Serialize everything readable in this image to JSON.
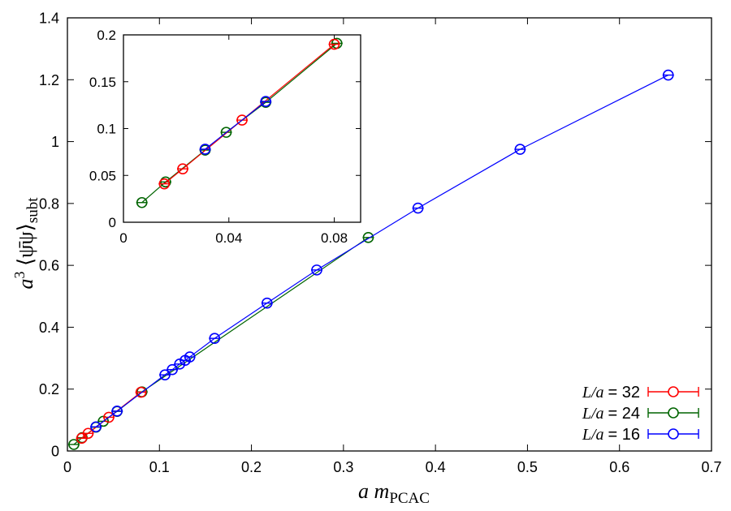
{
  "colors": {
    "l32": "#ff0000",
    "l24": "#006400",
    "l16": "#0000ff",
    "axis": "#000000"
  },
  "chart_data": [
    {
      "type": "scatter",
      "title": "",
      "xlabel": "a m_PCAC",
      "ylabel": "a^3 ⟨ψ̄ψ⟩_subt",
      "xlim": [
        0,
        0.7
      ],
      "ylim": [
        0,
        1.4
      ],
      "xticks": [
        "0",
        "0.1",
        "0.2",
        "0.3",
        "0.4",
        "0.5",
        "0.6",
        "0.7"
      ],
      "yticks": [
        "0",
        "0.2",
        "0.4",
        "0.6",
        "0.8",
        "1",
        "1.2",
        "1.4"
      ],
      "grid": false,
      "legend_position": "bottom-right",
      "series": [
        {
          "name": "L/a = 32",
          "color": "#ff0000",
          "x": [
            0.0155,
            0.0225,
            0.045,
            0.08
          ],
          "y": [
            0.041,
            0.057,
            0.109,
            0.19
          ]
        },
        {
          "name": "L/a = 24",
          "color": "#006400",
          "x": [
            0.007,
            0.016,
            0.031,
            0.039,
            0.054,
            0.081,
            0.327
          ],
          "y": [
            0.021,
            0.043,
            0.077,
            0.096,
            0.128,
            0.191,
            0.69
          ]
        },
        {
          "name": "L/a = 16",
          "color": "#0000ff",
          "x": [
            0.031,
            0.054,
            0.106,
            0.114,
            0.122,
            0.128,
            0.133,
            0.16,
            0.217,
            0.271,
            0.381,
            0.492,
            0.653
          ],
          "y": [
            0.078,
            0.129,
            0.246,
            0.263,
            0.281,
            0.293,
            0.304,
            0.364,
            0.478,
            0.585,
            0.785,
            0.975,
            1.215
          ]
        }
      ]
    },
    {
      "type": "scatter",
      "title": "",
      "xlim": [
        0,
        0.09
      ],
      "ylim": [
        0,
        0.2
      ],
      "xticks": [
        "0",
        "0.04",
        "0.08"
      ],
      "yticks": [
        "0",
        "0.05",
        "0.1",
        "0.15",
        "0.2"
      ],
      "grid": false,
      "legend_position": "none",
      "series": [
        {
          "name": "L/a = 32",
          "color": "#ff0000",
          "x": [
            0.0155,
            0.0225,
            0.045,
            0.08
          ],
          "y": [
            0.041,
            0.057,
            0.109,
            0.19
          ]
        },
        {
          "name": "L/a = 24",
          "color": "#006400",
          "x": [
            0.007,
            0.016,
            0.031,
            0.039,
            0.054,
            0.081
          ],
          "y": [
            0.021,
            0.043,
            0.077,
            0.096,
            0.128,
            0.191
          ]
        },
        {
          "name": "L/a = 16",
          "color": "#0000ff",
          "x": [
            0.031,
            0.054
          ],
          "y": [
            0.078,
            0.129
          ]
        }
      ]
    }
  ]
}
